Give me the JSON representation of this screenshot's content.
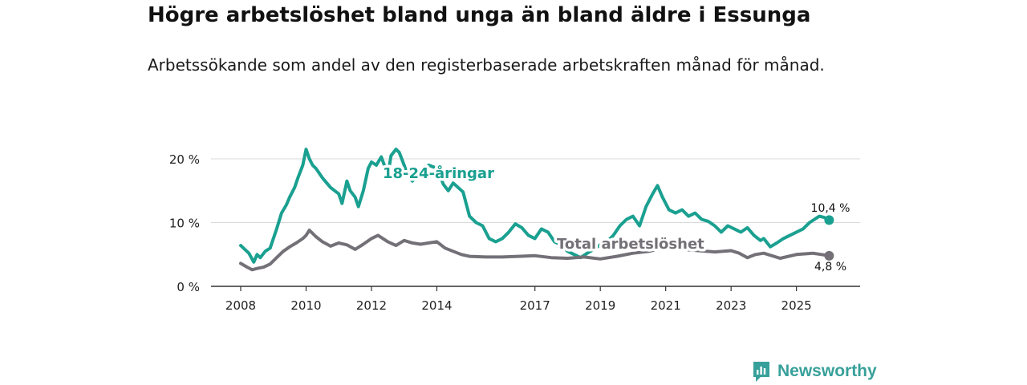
{
  "title": "Högre arbetslöshet bland unga än bland äldre i Essunga",
  "subtitle": "Arbetssökande som andel av den registerbaserade arbetskraften månad för månad.",
  "brand": "Newsworthy",
  "colors": {
    "youth": "#1aa090",
    "total": "#737077",
    "grid": "#d9d9d9",
    "axis": "#333333",
    "brand": "#38a09a"
  },
  "chart_data": {
    "type": "line",
    "title": "Högre arbetslöshet bland unga än bland äldre i Essunga",
    "xlabel": "",
    "ylabel": "",
    "xlim": [
      2007.5,
      2026.75
    ],
    "ylim": [
      0,
      22
    ],
    "yticks": [
      0,
      10,
      20
    ],
    "ytick_labels": [
      "0 %",
      "10 %",
      "20 %"
    ],
    "xticks": [
      2008,
      2010,
      2012,
      2014,
      2017,
      2019,
      2021,
      2023,
      2025
    ],
    "xtick_labels": [
      "2008",
      "2010",
      "2012",
      "2014",
      "2017",
      "2019",
      "2021",
      "2023",
      "2025"
    ],
    "grid": true,
    "series": [
      {
        "name": "18-24-åringar",
        "label": "18-24-åringar",
        "end_label": "10,4 %",
        "color_key": "youth",
        "x": [
          2008.0,
          2008.25,
          2008.4,
          2008.5,
          2008.6,
          2008.75,
          2008.9,
          2009.1,
          2009.25,
          2009.4,
          2009.5,
          2009.65,
          2009.75,
          2009.9,
          2010.0,
          2010.1,
          2010.2,
          2010.3,
          2010.5,
          2010.75,
          2011.0,
          2011.1,
          2011.25,
          2011.35,
          2011.5,
          2011.6,
          2011.75,
          2011.9,
          2012.0,
          2012.15,
          2012.3,
          2012.5,
          2012.6,
          2012.75,
          2012.85,
          2013.0,
          2013.1,
          2013.25,
          2013.5,
          2013.75,
          2014.0,
          2014.2,
          2014.35,
          2014.5,
          2014.65,
          2014.8,
          2015.0,
          2015.2,
          2015.4,
          2015.6,
          2015.8,
          2016.0,
          2016.2,
          2016.4,
          2016.6,
          2016.8,
          2017.0,
          2017.2,
          2017.4,
          2017.6,
          2017.8,
          2018.0,
          2018.2,
          2018.4,
          2018.6,
          2018.8,
          2019.0,
          2019.2,
          2019.4,
          2019.6,
          2019.8,
          2020.0,
          2020.2,
          2020.4,
          2020.6,
          2020.75,
          2020.9,
          2021.1,
          2021.3,
          2021.5,
          2021.7,
          2021.9,
          2022.1,
          2022.3,
          2022.5,
          2022.7,
          2022.9,
          2023.1,
          2023.3,
          2023.5,
          2023.7,
          2023.9,
          2024.0,
          2024.2,
          2024.4,
          2024.6,
          2024.8,
          2025.0,
          2025.2,
          2025.4,
          2025.55,
          2025.7,
          2025.85,
          2026.0
        ],
        "values": [
          6.4,
          5.2,
          3.8,
          5.0,
          4.5,
          5.5,
          6.0,
          9.0,
          11.5,
          12.8,
          14.0,
          15.5,
          17.0,
          19.0,
          21.5,
          20.0,
          19.0,
          18.5,
          17.0,
          15.5,
          14.5,
          13.0,
          16.5,
          15.0,
          14.0,
          12.5,
          15.0,
          18.5,
          19.5,
          19.0,
          20.3,
          17.5,
          20.5,
          21.5,
          21.0,
          19.0,
          17.5,
          16.5,
          18.0,
          19.0,
          18.5,
          16.0,
          15.0,
          16.2,
          15.5,
          14.8,
          11.0,
          10.0,
          9.5,
          7.5,
          7.0,
          7.5,
          8.5,
          9.8,
          9.2,
          8.0,
          7.5,
          9.0,
          8.5,
          7.0,
          6.5,
          5.5,
          5.0,
          4.5,
          5.2,
          5.8,
          6.5,
          7.0,
          8.0,
          9.5,
          10.5,
          11.0,
          9.5,
          12.5,
          14.5,
          15.8,
          14.0,
          12.0,
          11.5,
          12.0,
          11.0,
          11.5,
          10.5,
          10.2,
          9.5,
          8.5,
          9.5,
          9.0,
          8.5,
          9.2,
          8.0,
          7.2,
          7.5,
          6.2,
          6.8,
          7.5,
          8.0,
          8.5,
          9.0,
          10.0,
          10.5,
          11.0,
          10.8,
          10.4
        ]
      },
      {
        "name": "Total arbetslöshet",
        "label": "Total arbetslöshet",
        "end_label": "4,8 %",
        "color_key": "total",
        "x": [
          2008.0,
          2008.2,
          2008.35,
          2008.5,
          2008.7,
          2008.9,
          2009.1,
          2009.3,
          2009.5,
          2009.7,
          2009.9,
          2010.0,
          2010.1,
          2010.3,
          2010.5,
          2010.75,
          2011.0,
          2011.25,
          2011.5,
          2011.75,
          2012.0,
          2012.2,
          2012.5,
          2012.75,
          2013.0,
          2013.25,
          2013.5,
          2013.75,
          2014.0,
          2014.25,
          2014.5,
          2014.75,
          2015.0,
          2015.5,
          2016.0,
          2016.5,
          2017.0,
          2017.5,
          2018.0,
          2018.5,
          2019.0,
          2019.5,
          2020.0,
          2020.5,
          2020.8,
          2021.0,
          2021.5,
          2022.0,
          2022.5,
          2023.0,
          2023.25,
          2023.5,
          2023.75,
          2024.0,
          2024.5,
          2025.0,
          2025.5,
          2026.0
        ],
        "values": [
          3.6,
          3.0,
          2.6,
          2.8,
          3.0,
          3.5,
          4.5,
          5.5,
          6.2,
          6.8,
          7.5,
          8.0,
          8.8,
          7.8,
          7.0,
          6.3,
          6.8,
          6.5,
          5.8,
          6.6,
          7.5,
          8.0,
          7.0,
          6.4,
          7.2,
          6.8,
          6.6,
          6.8,
          7.0,
          6.0,
          5.5,
          5.0,
          4.7,
          4.6,
          4.6,
          4.7,
          4.8,
          4.5,
          4.4,
          4.6,
          4.3,
          4.7,
          5.2,
          5.5,
          5.9,
          6.0,
          5.8,
          5.6,
          5.4,
          5.6,
          5.2,
          4.5,
          5.0,
          5.2,
          4.4,
          5.0,
          5.2,
          4.8
        ]
      }
    ]
  }
}
